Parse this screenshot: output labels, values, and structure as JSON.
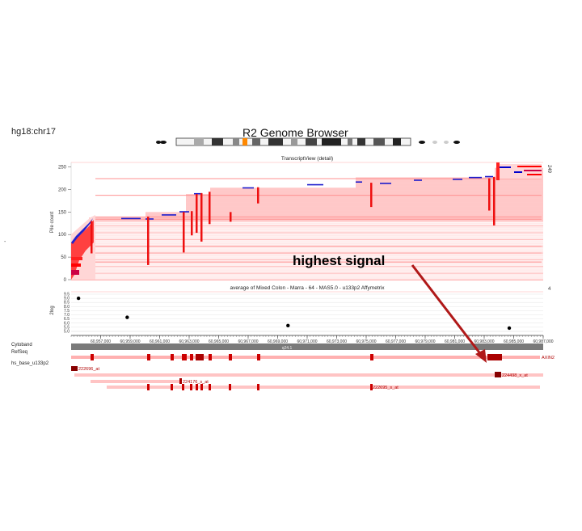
{
  "header": {
    "genome": "hg18:chr17",
    "title": "R2 Genome Browser"
  },
  "tracks": {
    "transcript_title": "TranscriptView (detail)",
    "transcript_ylabel": "Pile count",
    "expression_title": "average of Mixed Colon  - Marra - 64 - MAS5.0 - u133p2 Affymetrix",
    "expression_ylabel": "2log",
    "cytoband_label": "Cytoband",
    "cytoband_name": "q24.1",
    "refseq_label": "RefSeq",
    "gene_name": "AXIN2",
    "probe_track_label": "hs_base_u133p2",
    "right_count": "249",
    "right_small": "4"
  },
  "annotation": {
    "text": "highest signal",
    "arrow_color": "#b01818"
  },
  "colors": {
    "red": "#ff0000",
    "dark_red": "#b00000",
    "pink": "#ffcccc",
    "blue": "#0000cc",
    "cytoband_gray": "#808080"
  },
  "chart_data": [
    {
      "type": "area",
      "title": "TranscriptView (detail)",
      "ylabel": "Pile count",
      "yticks": [
        0,
        50,
        100,
        150,
        200,
        250
      ],
      "ylim": [
        0,
        260
      ],
      "x": [
        "60,955,000",
        "60,957,000",
        "60,959,000",
        "60,961,000",
        "60,963,000",
        "60,967,000",
        "60,975,000",
        "60,983,000",
        "60,985,000",
        "60,987,000"
      ],
      "pile_count": [
        0,
        130,
        138,
        150,
        190,
        205,
        215,
        228,
        249,
        249
      ]
    },
    {
      "type": "scatter",
      "title": "average of Mixed Colon  - Marra - 64 - MAS5.0 - u133p2 Affymetrix",
      "ylabel": "2log",
      "yticks": [
        5.0,
        5.5,
        6.0,
        6.5,
        7.0,
        7.5,
        8.0,
        8.5,
        9.0,
        9.5
      ],
      "ylim": [
        5.0,
        9.5
      ],
      "points": [
        {
          "x": "60,955,500",
          "y": 9.0
        },
        {
          "x": "60,958,800",
          "y": 6.7
        },
        {
          "x": "60,969,700",
          "y": 5.7
        },
        {
          "x": "60,984,700",
          "y": 5.4
        }
      ]
    }
  ],
  "axis": {
    "ticks": [
      "60,957,000",
      "60,959,000",
      "60,961,000",
      "60,963,000",
      "60,965,000",
      "60,967,000",
      "60,969,000",
      "60,971,000",
      "60,973,000",
      "60,975,000",
      "60,977,000",
      "60,979,000",
      "60,981,000",
      "60,983,000",
      "60,985,000",
      "60,987,000"
    ]
  },
  "probes": [
    "222696_at",
    "224176_s_at",
    "224498_x_at",
    "222695_s_at"
  ]
}
